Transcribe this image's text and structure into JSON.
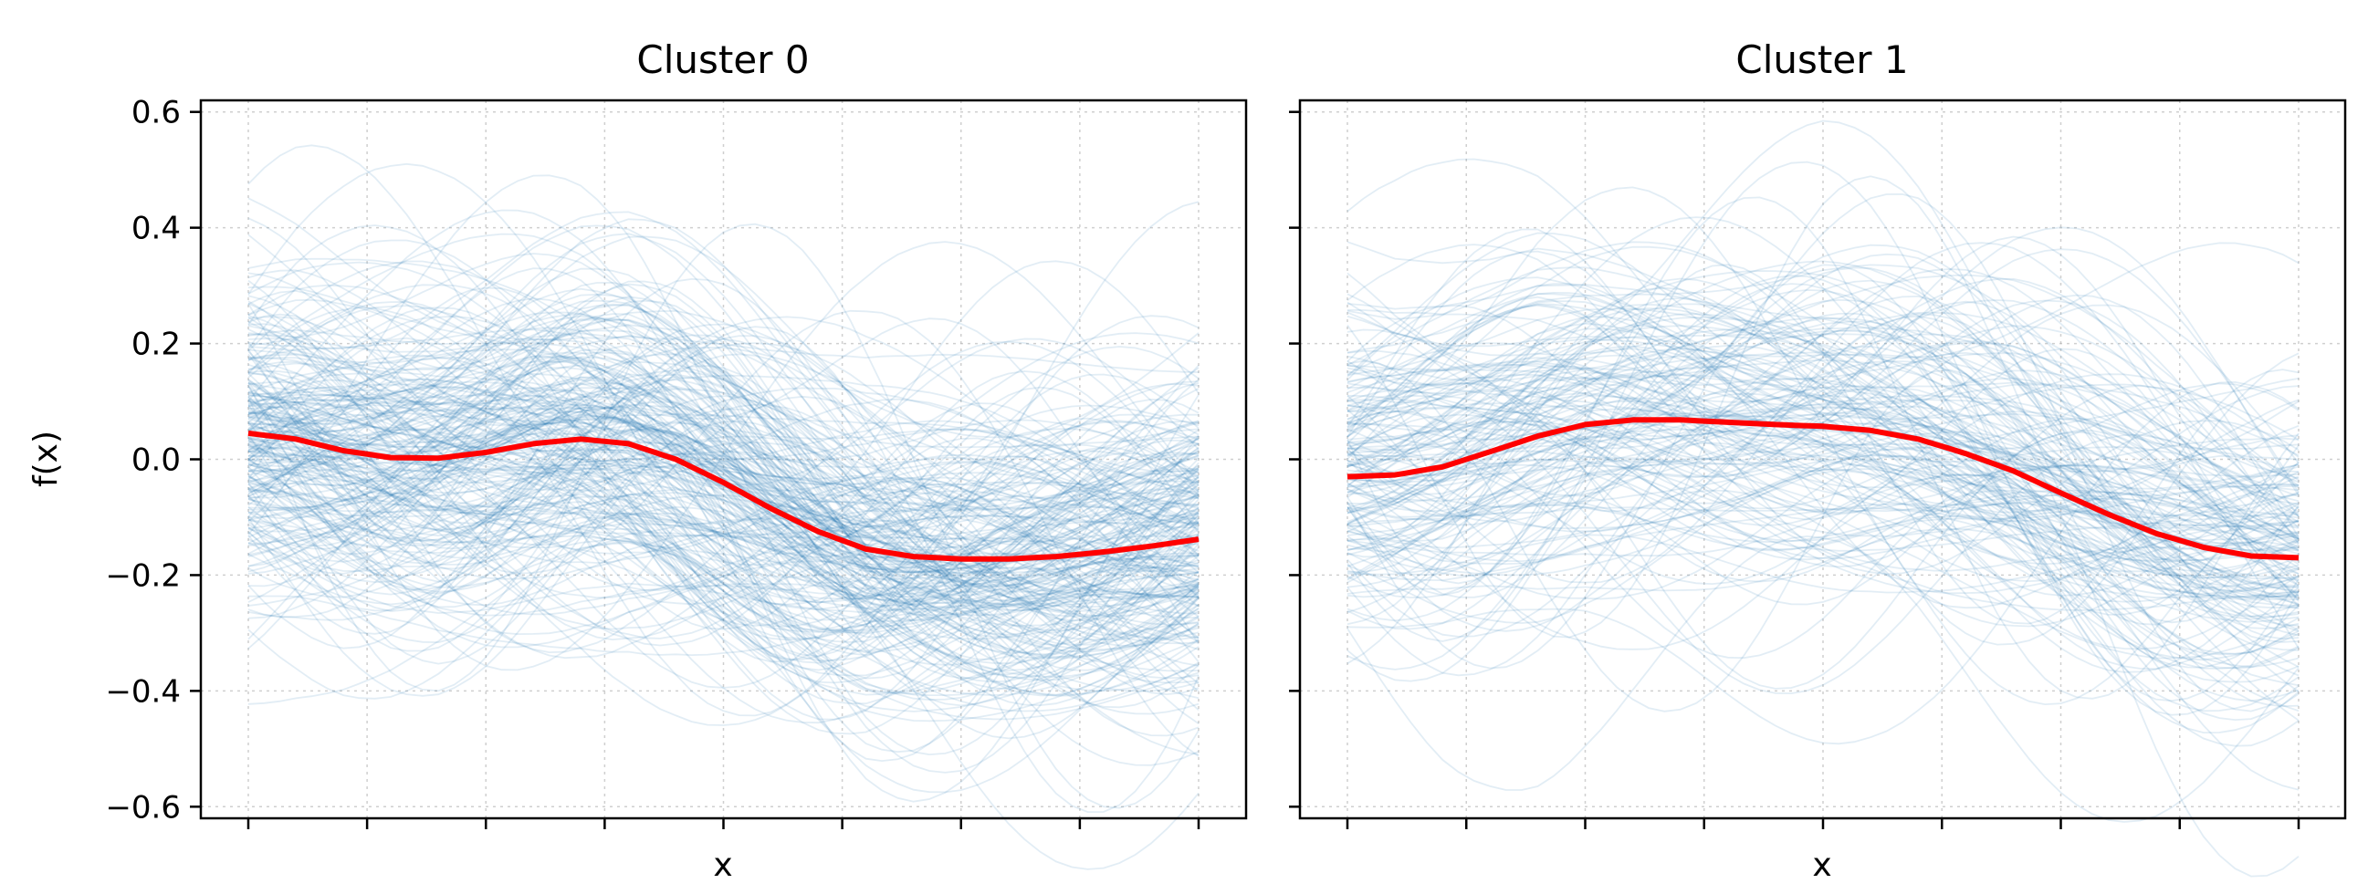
{
  "chart_data": [
    {
      "type": "line",
      "title": "Cluster 0",
      "xlabel": "x",
      "ylabel": "f(x)",
      "ylim": [
        -0.62,
        0.62
      ],
      "yticks": [
        -0.6,
        -0.4,
        -0.2,
        0.0,
        0.2,
        0.4,
        0.6
      ],
      "ytick_labels": [
        "−0.6",
        "−0.4",
        "−0.2",
        "0.0",
        "0.2",
        "0.4",
        "0.6"
      ],
      "x_tick_count": 9,
      "x_tick_labels_visible": false,
      "grid": true,
      "series": [
        {
          "name": "mean",
          "color": "#ff0000",
          "x": [
            0,
            0.05,
            0.1,
            0.15,
            0.2,
            0.25,
            0.3,
            0.35,
            0.4,
            0.45,
            0.5,
            0.55,
            0.6,
            0.65,
            0.7,
            0.75,
            0.8,
            0.85,
            0.9,
            0.95,
            1
          ],
          "values": [
            0.045,
            0.035,
            0.015,
            0.003,
            0.002,
            0.012,
            0.027,
            0.035,
            0.027,
            0.0,
            -0.04,
            -0.085,
            -0.125,
            -0.155,
            -0.168,
            -0.172,
            -0.172,
            -0.168,
            -0.16,
            -0.15,
            -0.138
          ]
        },
        {
          "name": "samples",
          "color": "#1f77b4",
          "count": 260,
          "x": [
            0,
            0.05,
            0.1,
            0.15,
            0.2,
            0.25,
            0.3,
            0.35,
            0.4,
            0.45,
            0.5,
            0.55,
            0.6,
            0.65,
            0.7,
            0.75,
            0.8,
            0.85,
            0.9,
            0.95,
            1
          ],
          "band_mean": [
            0.045,
            0.035,
            0.015,
            0.003,
            0.002,
            0.012,
            0.027,
            0.035,
            0.027,
            0.0,
            -0.04,
            -0.085,
            -0.125,
            -0.155,
            -0.168,
            -0.172,
            -0.172,
            -0.168,
            -0.16,
            -0.15,
            -0.138
          ],
          "band_spread": [
            0.13,
            0.13,
            0.13,
            0.13,
            0.13,
            0.13,
            0.13,
            0.13,
            0.13,
            0.13,
            0.13,
            0.13,
            0.13,
            0.13,
            0.13,
            0.13,
            0.13,
            0.13,
            0.13,
            0.13,
            0.13
          ]
        }
      ]
    },
    {
      "type": "line",
      "title": "Cluster 1",
      "xlabel": "x",
      "ylabel": "",
      "ylim": [
        -0.62,
        0.62
      ],
      "yticks": [
        -0.6,
        -0.4,
        -0.2,
        0.0,
        0.2,
        0.4,
        0.6
      ],
      "ytick_labels": [],
      "x_tick_count": 9,
      "x_tick_labels_visible": false,
      "grid": true,
      "series": [
        {
          "name": "mean",
          "color": "#ff0000",
          "x": [
            0,
            0.05,
            0.1,
            0.15,
            0.2,
            0.25,
            0.3,
            0.35,
            0.4,
            0.45,
            0.5,
            0.55,
            0.6,
            0.65,
            0.7,
            0.75,
            0.8,
            0.85,
            0.9,
            0.95,
            1
          ],
          "values": [
            -0.03,
            -0.027,
            -0.013,
            0.013,
            0.04,
            0.06,
            0.068,
            0.068,
            0.064,
            0.06,
            0.057,
            0.05,
            0.035,
            0.01,
            -0.02,
            -0.058,
            -0.095,
            -0.128,
            -0.152,
            -0.167,
            -0.17
          ]
        },
        {
          "name": "samples",
          "color": "#1f77b4",
          "count": 180,
          "x": [
            0,
            0.05,
            0.1,
            0.15,
            0.2,
            0.25,
            0.3,
            0.35,
            0.4,
            0.45,
            0.5,
            0.55,
            0.6,
            0.65,
            0.7,
            0.75,
            0.8,
            0.85,
            0.9,
            0.95,
            1
          ],
          "band_mean": [
            -0.03,
            -0.027,
            -0.013,
            0.013,
            0.04,
            0.06,
            0.068,
            0.068,
            0.064,
            0.06,
            0.057,
            0.05,
            0.035,
            0.01,
            -0.02,
            -0.058,
            -0.095,
            -0.128,
            -0.152,
            -0.167,
            -0.17
          ],
          "band_spread": [
            0.14,
            0.14,
            0.145,
            0.15,
            0.16,
            0.16,
            0.16,
            0.16,
            0.16,
            0.16,
            0.16,
            0.155,
            0.15,
            0.145,
            0.14,
            0.135,
            0.13,
            0.125,
            0.12,
            0.115,
            0.11
          ]
        }
      ]
    }
  ]
}
